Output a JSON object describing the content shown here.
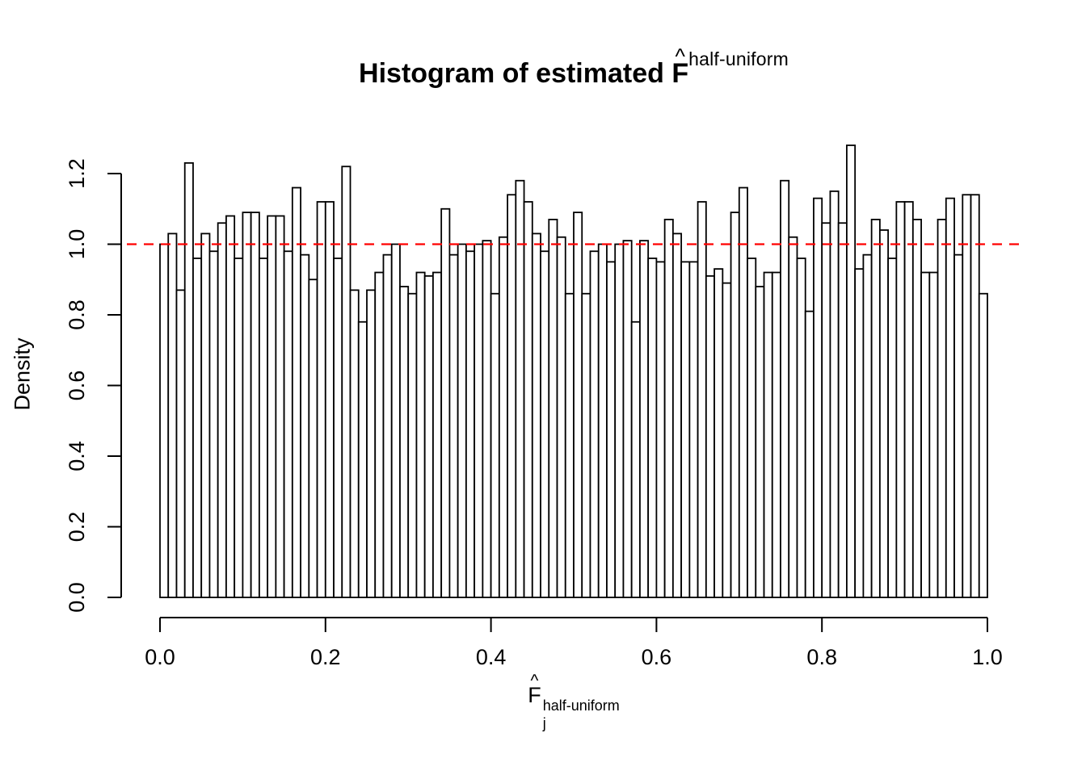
{
  "figure": {
    "background": "#ffffff",
    "text_color": "#000000"
  },
  "chart_data": {
    "type": "bar",
    "subtype": "histogram",
    "title_prefix": "Histogram of estimated ",
    "title_symbol": "F",
    "hat_char": "^",
    "title_superscript": "half-uniform",
    "xlabel_symbol": "F",
    "xlabel_subscript": "j",
    "xlabel_superscript": "half-uniform",
    "ylabel": "Density",
    "xlim": [
      0.0,
      1.0
    ],
    "ylim": [
      0.0,
      1.3
    ],
    "bin_start": 0.0,
    "bin_width": 0.01,
    "values": [
      1.0,
      1.03,
      0.87,
      1.23,
      0.96,
      1.03,
      0.98,
      1.06,
      1.08,
      0.96,
      1.09,
      1.09,
      0.96,
      1.08,
      1.08,
      0.98,
      1.16,
      0.97,
      0.9,
      1.12,
      1.12,
      0.96,
      1.22,
      0.87,
      0.78,
      0.87,
      0.92,
      0.97,
      1.0,
      0.88,
      0.86,
      0.92,
      0.91,
      0.92,
      1.1,
      0.97,
      1.0,
      0.98,
      1.0,
      1.01,
      0.86,
      1.02,
      1.14,
      1.18,
      1.12,
      1.03,
      0.98,
      1.07,
      1.02,
      0.86,
      1.09,
      0.86,
      0.98,
      1.0,
      0.95,
      1.0,
      1.01,
      0.78,
      1.01,
      0.96,
      0.95,
      1.07,
      1.03,
      0.95,
      0.95,
      1.12,
      0.91,
      0.93,
      0.89,
      1.09,
      1.16,
      0.96,
      0.88,
      0.92,
      0.92,
      1.18,
      1.02,
      0.96,
      0.81,
      1.13,
      1.06,
      1.15,
      1.06,
      1.28,
      0.93,
      0.97,
      1.07,
      1.04,
      0.96,
      1.12,
      1.12,
      1.07,
      0.92,
      0.92,
      1.07,
      1.13,
      0.97,
      1.14,
      1.14,
      0.86
    ],
    "x_ticks": [
      0.0,
      0.2,
      0.4,
      0.6,
      0.8,
      1.0
    ],
    "x_tick_labels": [
      "0.0",
      "0.2",
      "0.4",
      "0.6",
      "0.8",
      "1.0"
    ],
    "y_ticks": [
      0.0,
      0.2,
      0.4,
      0.6,
      0.8,
      1.0,
      1.2
    ],
    "y_tick_labels": [
      "0.0",
      "0.2",
      "0.4",
      "0.6",
      "0.8",
      "1.2"
    ],
    "y_tick_labels_full": [
      "0.0",
      "0.2",
      "0.4",
      "0.6",
      "0.8",
      "1.0",
      "1.2"
    ],
    "reference_line": {
      "y": 1.0,
      "color": "#ff0000",
      "style": "dashed"
    },
    "bar_fill": "#ffffff",
    "bar_stroke": "#000000",
    "axis_color": "#000000",
    "grid": false,
    "legend": false
  }
}
